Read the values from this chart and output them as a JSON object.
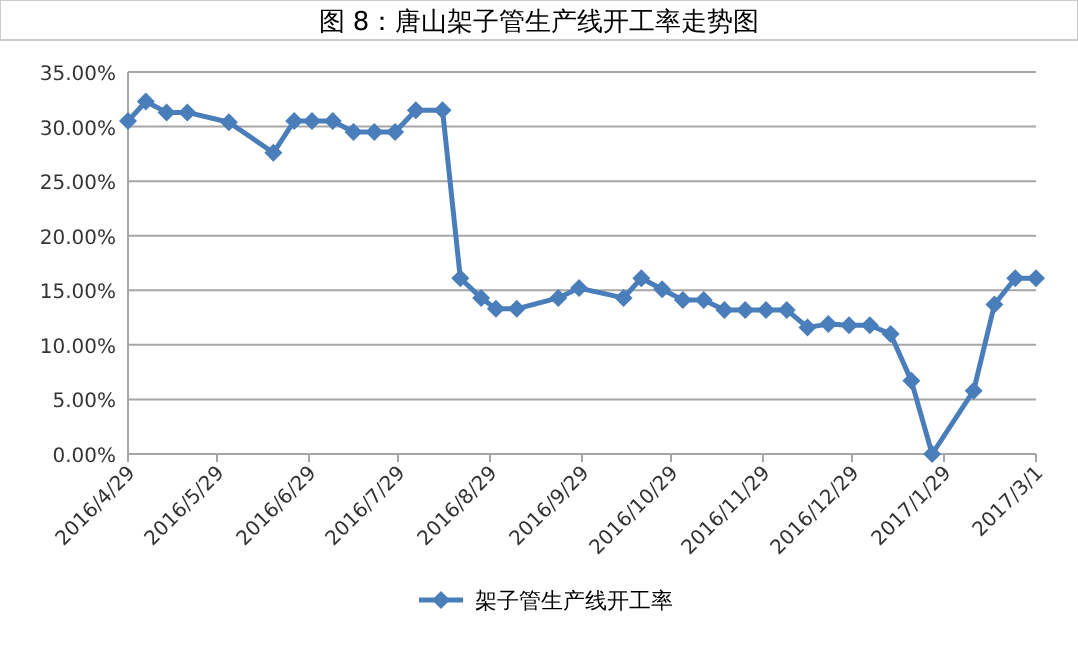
{
  "chart_data": {
    "type": "line",
    "title": "图 8：唐山架子管生产线开工率走势图",
    "x": [
      "2016-04-29",
      "2016-05-05",
      "2016-05-12",
      "2016-05-19",
      "2016-06-02",
      "2016-06-17",
      "2016-06-24",
      "2016-06-30",
      "2016-07-07",
      "2016-07-14",
      "2016-07-21",
      "2016-07-28",
      "2016-08-04",
      "2016-08-13",
      "2016-08-19",
      "2016-08-26",
      "2016-08-31",
      "2016-09-07",
      "2016-09-21",
      "2016-09-28",
      "2016-10-13",
      "2016-10-19",
      "2016-10-26",
      "2016-11-02",
      "2016-11-09",
      "2016-11-16",
      "2016-11-23",
      "2016-11-30",
      "2016-12-07",
      "2016-12-14",
      "2016-12-21",
      "2016-12-28",
      "2017-01-04",
      "2017-01-11",
      "2017-01-18",
      "2017-01-25",
      "2017-02-08",
      "2017-02-15",
      "2017-02-22",
      "2017-03-01"
    ],
    "series": [
      {
        "name": "架子管生产线开工率",
        "color": "#4a7ebb",
        "values": [
          30.5,
          32.3,
          31.3,
          31.3,
          30.4,
          27.6,
          30.5,
          30.5,
          30.5,
          29.5,
          29.5,
          29.5,
          31.5,
          31.5,
          16.1,
          14.3,
          13.3,
          13.3,
          14.3,
          15.2,
          14.3,
          16.1,
          15.1,
          14.1,
          14.1,
          13.2,
          13.2,
          13.2,
          13.2,
          11.6,
          11.9,
          11.8,
          11.8,
          11.0,
          6.7,
          0,
          5.8,
          13.7,
          16.1,
          16.1
        ]
      }
    ],
    "xlim": [
      "2016-04-29",
      "2017-03-01"
    ],
    "xticks": [
      {
        "value": "2016-04-29",
        "label": "2016/4/29"
      },
      {
        "value": "2016-05-29",
        "label": "2016/5/29"
      },
      {
        "value": "2016-06-29",
        "label": "2016/6/29"
      },
      {
        "value": "2016-07-29",
        "label": "2016/7/29"
      },
      {
        "value": "2016-08-29",
        "label": "2016/8/29"
      },
      {
        "value": "2016-09-29",
        "label": "2016/9/29"
      },
      {
        "value": "2016-10-29",
        "label": "2016/10/29"
      },
      {
        "value": "2016-11-29",
        "label": "2016/11/29"
      },
      {
        "value": "2016-12-29",
        "label": "2016/12/29"
      },
      {
        "value": "2017-01-29",
        "label": "2017/1/29"
      },
      {
        "value": "2017-03-01",
        "label": "2017/3/1"
      }
    ],
    "ylim": [
      0,
      35
    ],
    "yticks": [
      {
        "value": 0,
        "label": "0.00%"
      },
      {
        "value": 5,
        "label": "5.00%"
      },
      {
        "value": 10,
        "label": "10.00%"
      },
      {
        "value": 15,
        "label": "15.00%"
      },
      {
        "value": 20,
        "label": "20.00%"
      },
      {
        "value": 25,
        "label": "25.00%"
      },
      {
        "value": 30,
        "label": "30.00%"
      },
      {
        "value": 35,
        "label": "35.00%"
      }
    ],
    "grid": "y",
    "legend": "bottom",
    "marker": "diamond",
    "line_style": "solid"
  }
}
